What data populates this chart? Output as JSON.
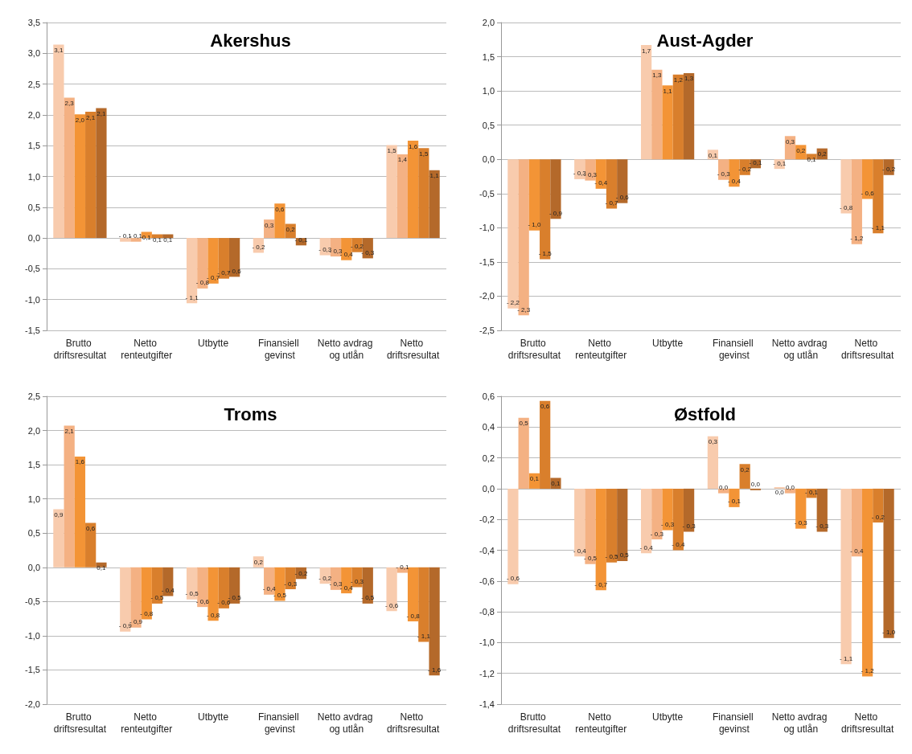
{
  "chart_data": [
    {
      "type": "bar",
      "title": "Akershus",
      "categories": [
        "Brutto driftsresultat",
        "Netto renteutgifter",
        "Utbytte",
        "Finansiell gevinst",
        "Netto avdrag og utlån",
        "Netto driftsresultat"
      ],
      "grid": "y",
      "ylim": [
        -1.5,
        3.5
      ],
      "yticks": [
        {
          "value": -1.5,
          "label": "-1,5"
        },
        {
          "value": -1,
          "label": "-1,0"
        },
        {
          "value": -0.5,
          "label": "-0,5"
        },
        {
          "value": 0,
          "label": "0,0"
        },
        {
          "value": 0.5,
          "label": "0,5"
        },
        {
          "value": 1,
          "label": "1,0"
        },
        {
          "value": 1.5,
          "label": "1,5"
        },
        {
          "value": 2,
          "label": "2,0"
        },
        {
          "value": 2.5,
          "label": "2,5"
        },
        {
          "value": 3,
          "label": "3,0"
        },
        {
          "value": 3.5,
          "label": "3,5"
        }
      ],
      "series": [
        {
          "color": "#f8cbad",
          "values": [
            3.14,
            -0.06,
            -1.06,
            -0.24,
            -0.28,
            1.51
          ],
          "value_labels": [
            "3,1",
            "- 0,1",
            "- 1,1",
            "- 0,2",
            "- 0,3",
            "1,5"
          ]
        },
        {
          "color": "#f4b183",
          "values": [
            2.28,
            -0.06,
            -0.82,
            0.3,
            -0.3,
            1.36
          ],
          "value_labels": [
            "2,3",
            "- 0,1",
            "- 0,8",
            "0,3",
            "- 0,3",
            "1,4"
          ]
        },
        {
          "color": "#f39436",
          "values": [
            2.01,
            0.1,
            -0.74,
            0.56,
            -0.36,
            1.58
          ],
          "value_labels": [
            "2,0",
            "0,1",
            "- 0,7",
            "0,6",
            "- 0,4",
            "1,6"
          ]
        },
        {
          "color": "#d97f2c",
          "values": [
            2.05,
            0.06,
            -0.66,
            0.23,
            -0.23,
            1.46
          ],
          "value_labels": [
            "2,1",
            "0,1",
            "- 0,7",
            "0,2",
            "- 0,2",
            "1,5"
          ]
        },
        {
          "color": "#b4692a",
          "values": [
            2.11,
            0.06,
            -0.63,
            -0.12,
            -0.33,
            1.1
          ],
          "value_labels": [
            "2,1",
            "0,1",
            "- 0,6",
            "- 0,1",
            "- 0,3",
            "1,1"
          ]
        }
      ]
    },
    {
      "type": "bar",
      "title": "Aust-Agder",
      "categories": [
        "Brutto driftsresultat",
        "Netto renteutgifter",
        "Utbytte",
        "Finansiell gevinst",
        "Netto avdrag og utlån",
        "Netto driftsresultat"
      ],
      "grid": "y",
      "ylim": [
        -2.5,
        2
      ],
      "yticks": [
        {
          "value": -2.5,
          "label": "-2,5"
        },
        {
          "value": -2,
          "label": "-2,0"
        },
        {
          "value": -1.5,
          "label": "-1,5"
        },
        {
          "value": -1,
          "label": "-1,0"
        },
        {
          "value": -0.5,
          "label": "-0,5"
        },
        {
          "value": 0,
          "label": "0,0"
        },
        {
          "value": 0.5,
          "label": "0,5"
        },
        {
          "value": 1,
          "label": "1,0"
        },
        {
          "value": 1.5,
          "label": "1,5"
        },
        {
          "value": 2,
          "label": "2,0"
        }
      ],
      "series": [
        {
          "color": "#f8cbad",
          "values": [
            -2.18,
            -0.29,
            1.67,
            0.14,
            -0.14,
            -0.79
          ],
          "value_labels": [
            "- 2,2",
            "- 0,3",
            "1,7",
            "0,1",
            "- 0,1",
            "- 0,8"
          ]
        },
        {
          "color": "#f4b183",
          "values": [
            -2.28,
            -0.31,
            1.31,
            -0.3,
            0.34,
            -1.24
          ],
          "value_labels": [
            "- 2,3",
            "- 0,3",
            "1,3",
            "- 0,3",
            "0,3",
            "- 1,2"
          ]
        },
        {
          "color": "#f39436",
          "values": [
            -1.04,
            -0.43,
            1.08,
            -0.4,
            0.21,
            -0.58
          ],
          "value_labels": [
            "- 1,0",
            "- 0,4",
            "1,1",
            "- 0,4",
            "0,2",
            "- 0,6"
          ]
        },
        {
          "color": "#d97f2c",
          "values": [
            -1.46,
            -0.72,
            1.24,
            -0.23,
            0.08,
            -1.08
          ],
          "value_labels": [
            "- 1,5",
            "- 0,7",
            "1,2",
            "- 0,2",
            "0,1",
            "- 1,1"
          ]
        },
        {
          "color": "#b4692a",
          "values": [
            -0.87,
            -0.64,
            1.26,
            -0.13,
            0.16,
            -0.23
          ],
          "value_labels": [
            "- 0,9",
            "- 0,6",
            "1,3",
            "- 0,1",
            "0,2",
            "- 0,2"
          ]
        }
      ]
    },
    {
      "type": "bar",
      "title": "Troms",
      "categories": [
        "Brutto driftsresultat",
        "Netto renteutgifter",
        "Utbytte",
        "Finansiell gevinst",
        "Netto avdrag og utlån",
        "Netto driftsresultat"
      ],
      "grid": "y",
      "ylim": [
        -2,
        2.5
      ],
      "yticks": [
        {
          "value": -2,
          "label": "-2,0"
        },
        {
          "value": -1.5,
          "label": "-1,5"
        },
        {
          "value": -1,
          "label": "-1,0"
        },
        {
          "value": -0.5,
          "label": "-0,5"
        },
        {
          "value": 0,
          "label": "0,0"
        },
        {
          "value": 0.5,
          "label": "0,5"
        },
        {
          "value": 1,
          "label": "1,0"
        },
        {
          "value": 1.5,
          "label": "1,5"
        },
        {
          "value": 2,
          "label": "2,0"
        },
        {
          "value": 2.5,
          "label": "2,5"
        }
      ],
      "series": [
        {
          "color": "#f8cbad",
          "values": [
            0.85,
            -0.94,
            -0.47,
            0.16,
            -0.24,
            -0.64
          ],
          "value_labels": [
            "0,9",
            "- 0,9",
            "- 0,5",
            "0,2",
            "- 0,2",
            "- 0,6"
          ]
        },
        {
          "color": "#f4b183",
          "values": [
            2.07,
            -0.88,
            -0.58,
            -0.4,
            -0.33,
            -0.08
          ],
          "value_labels": [
            "2,1",
            "- 0,9",
            "- 0,6",
            "- 0,4",
            "- 0,3",
            "- 0,1"
          ]
        },
        {
          "color": "#f39436",
          "values": [
            1.62,
            -0.76,
            -0.78,
            -0.49,
            -0.38,
            -0.79
          ],
          "value_labels": [
            "1,6",
            "- 0,8",
            "- 0,8",
            "- 0,5",
            "- 0,4",
            "- 0,8"
          ]
        },
        {
          "color": "#d97f2c",
          "values": [
            0.65,
            -0.53,
            -0.6,
            -0.32,
            -0.29,
            -1.09
          ],
          "value_labels": [
            "0,6",
            "- 0,5",
            "- 0,6",
            "- 0,3",
            "- 0,3",
            "- 1,1"
          ]
        },
        {
          "color": "#b4692a",
          "values": [
            0.07,
            -0.42,
            -0.53,
            -0.17,
            -0.53,
            -1.58
          ],
          "value_labels": [
            "0,1",
            "- 0,4",
            "- 0,5",
            "- 0,2",
            "- 0,5",
            "- 1,6"
          ]
        }
      ]
    },
    {
      "type": "bar",
      "title": "Østfold",
      "categories": [
        "Brutto driftsresultat",
        "Netto renteutgifter",
        "Utbytte",
        "Finansiell gevinst",
        "Netto avdrag og utlån",
        "Netto driftsresultat"
      ],
      "grid": "y",
      "ylim": [
        -1.4,
        0.6
      ],
      "yticks": [
        {
          "value": -1.4,
          "label": "-1,4"
        },
        {
          "value": -1.2,
          "label": "-1,2"
        },
        {
          "value": -1,
          "label": "-1,0"
        },
        {
          "value": -0.8,
          "label": "-0,8"
        },
        {
          "value": -0.6,
          "label": "-0,6"
        },
        {
          "value": -0.4,
          "label": "-0,4"
        },
        {
          "value": -0.2,
          "label": "-0,2"
        },
        {
          "value": 0,
          "label": "0,0"
        },
        {
          "value": 0.2,
          "label": "0,2"
        },
        {
          "value": 0.4,
          "label": "0,4"
        },
        {
          "value": 0.6,
          "label": "0,6"
        }
      ],
      "series": [
        {
          "color": "#f8cbad",
          "values": [
            -0.62,
            -0.44,
            -0.42,
            0.34,
            0.01,
            -1.14
          ],
          "value_labels": [
            "- 0,6",
            "- 0,4",
            "- 0,4",
            "0,3",
            "0,0",
            "- 1,1"
          ]
        },
        {
          "color": "#f4b183",
          "values": [
            0.46,
            -0.49,
            -0.33,
            -0.03,
            -0.03,
            -0.44
          ],
          "value_labels": [
            "0,5",
            "- 0,5",
            "- 0,3",
            "0,0",
            "0,0",
            "- 0,4"
          ]
        },
        {
          "color": "#f39436",
          "values": [
            0.1,
            -0.66,
            -0.27,
            -0.12,
            -0.26,
            -1.22
          ],
          "value_labels": [
            "0,1",
            "- 0,7",
            "- 0,3",
            "- 0,1",
            "- 0,3",
            "- 1,2"
          ]
        },
        {
          "color": "#d97f2c",
          "values": [
            0.57,
            -0.48,
            -0.4,
            0.16,
            -0.06,
            -0.22
          ],
          "value_labels": [
            "0,6",
            "- 0,5",
            "- 0,4",
            "0,2",
            "- 0,1",
            "- 0,2"
          ]
        },
        {
          "color": "#b4692a",
          "values": [
            0.07,
            -0.47,
            -0.28,
            -0.01,
            -0.28,
            -0.97
          ],
          "value_labels": [
            "0,1",
            "- 0,5",
            "- 0,3",
            "0,0",
            "- 0,3",
            "- 1,0"
          ]
        }
      ]
    }
  ]
}
